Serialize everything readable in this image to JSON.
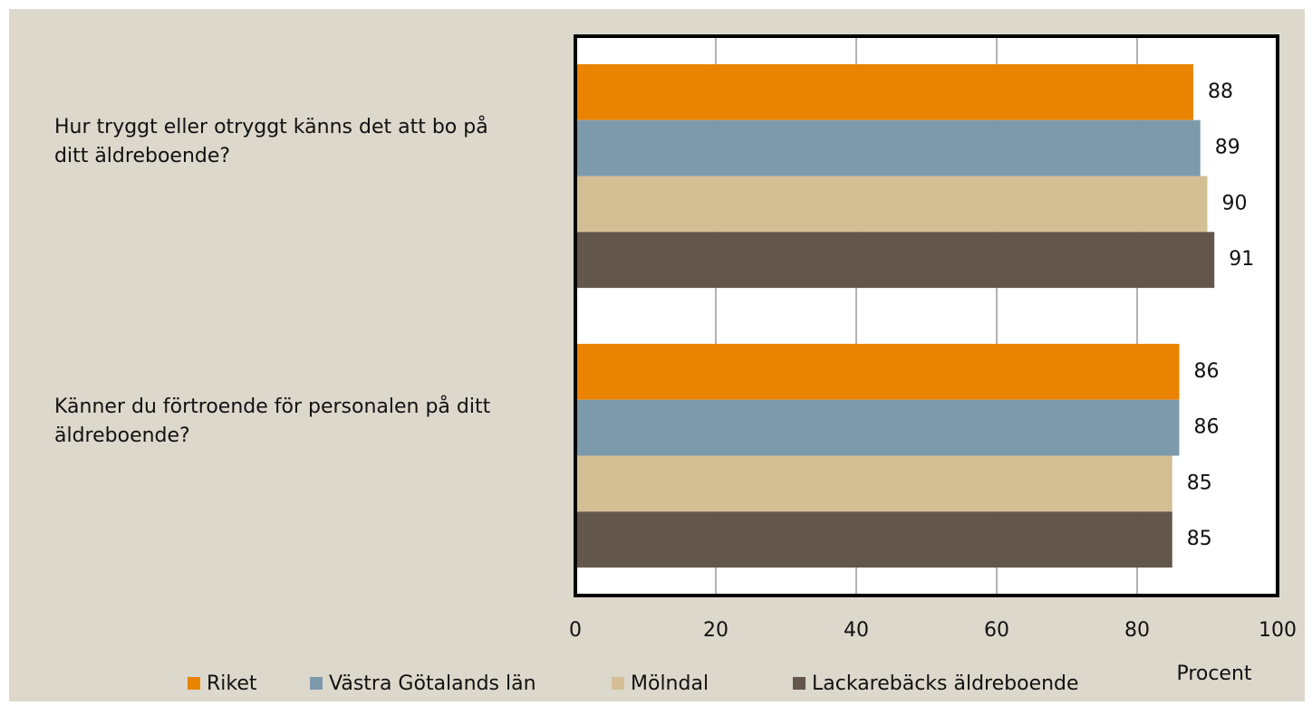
{
  "chart_data": {
    "type": "barh",
    "categories": [
      "Hur tryggt eller otryggt känns det att bo på ditt äldreboende?",
      "Känner du förtroende för personalen på ditt äldreboende?"
    ],
    "series": [
      {
        "name": "Riket",
        "color": "#e98300",
        "values": [
          88,
          86
        ]
      },
      {
        "name": "Västra Götalands län",
        "color": "#7d9aad",
        "values": [
          89,
          86
        ]
      },
      {
        "name": "Mölndal",
        "color": "#d4bf95",
        "values": [
          90,
          85
        ]
      },
      {
        "name": "Lackarebäcks äldreboende",
        "color": "#63564a",
        "values": [
          91,
          85
        ]
      }
    ],
    "xlabel": "Procent",
    "xlim": [
      0,
      100
    ],
    "xticks": [
      0,
      20,
      40,
      60,
      80,
      100
    ],
    "grid": true
  }
}
